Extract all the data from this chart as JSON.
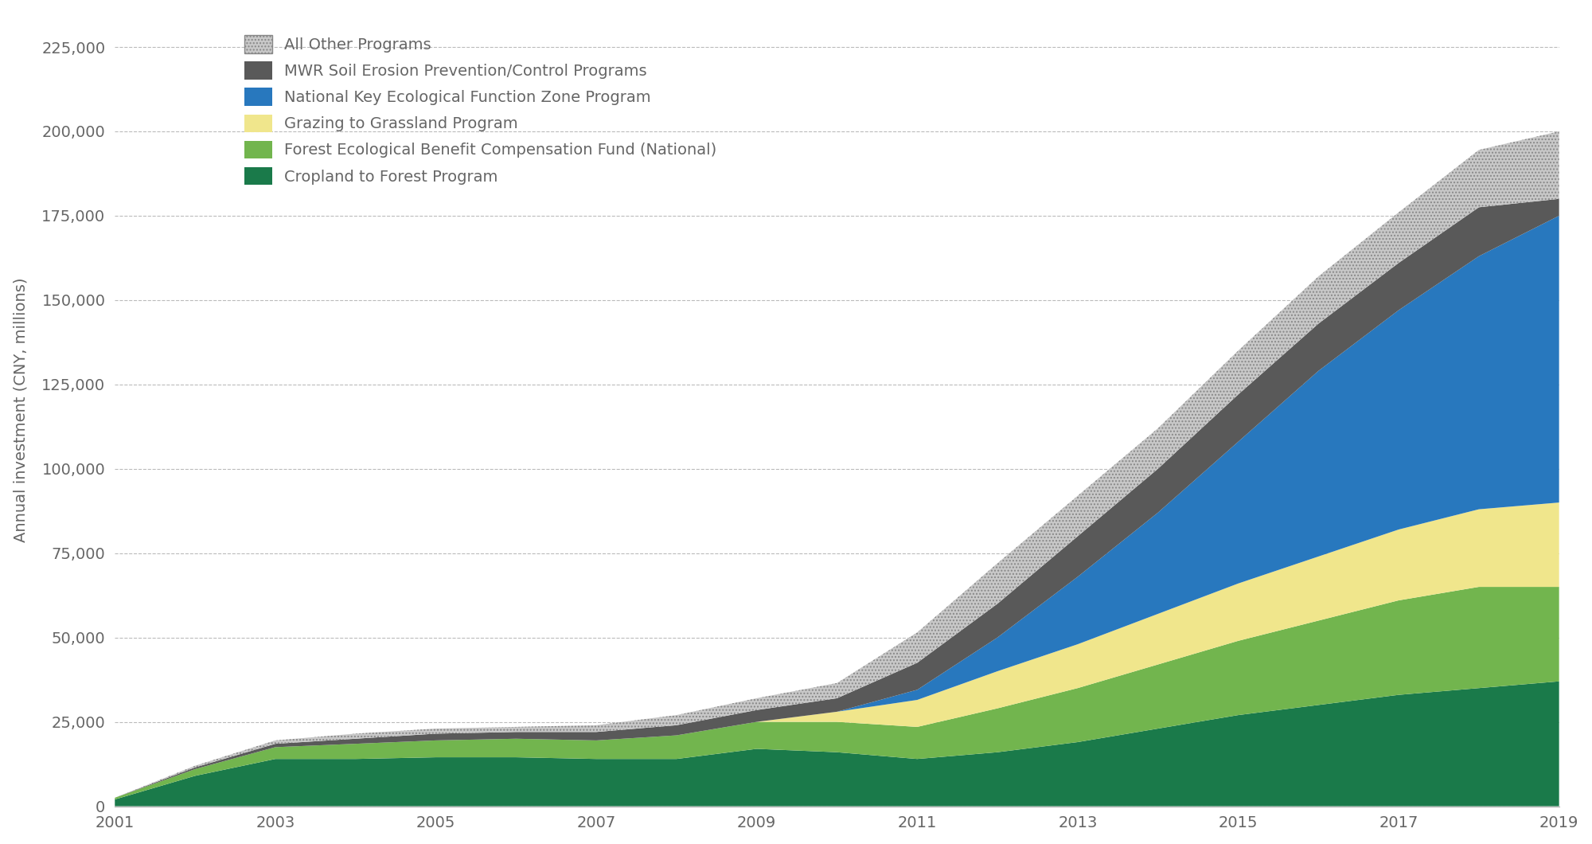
{
  "years": [
    2001,
    2002,
    2003,
    2004,
    2005,
    2006,
    2007,
    2008,
    2009,
    2010,
    2011,
    2012,
    2013,
    2014,
    2015,
    2016,
    2017,
    2018,
    2019
  ],
  "cropland_to_forest": [
    2000,
    9000,
    14000,
    14000,
    14500,
    14500,
    14000,
    14000,
    17000,
    16000,
    14000,
    16000,
    19000,
    23000,
    27000,
    30000,
    33000,
    35000,
    37000
  ],
  "forest_eco_fund": [
    500,
    2000,
    3500,
    4500,
    5000,
    5500,
    5500,
    7000,
    8000,
    9000,
    9500,
    13000,
    16000,
    19000,
    22000,
    25000,
    28000,
    30000,
    28000
  ],
  "grazing_to_grassland": [
    0,
    0,
    0,
    0,
    0,
    0,
    0,
    0,
    0,
    3000,
    8000,
    11000,
    13000,
    15000,
    17000,
    19000,
    21000,
    23000,
    25000
  ],
  "nat_key_eco_zone": [
    0,
    0,
    0,
    0,
    0,
    0,
    0,
    0,
    0,
    0,
    3000,
    10000,
    20000,
    30000,
    42000,
    55000,
    65000,
    75000,
    85000
  ],
  "mwr_soil_erosion": [
    0,
    500,
    1000,
    1500,
    2000,
    2000,
    2500,
    3000,
    3500,
    4000,
    8000,
    10000,
    12000,
    13000,
    14000,
    14000,
    14000,
    14500,
    5000
  ],
  "all_other": [
    0,
    500,
    1000,
    1500,
    1500,
    1500,
    2000,
    3000,
    3500,
    4500,
    9000,
    12000,
    12000,
    12000,
    13000,
    14000,
    15000,
    17000,
    20000
  ],
  "colors": {
    "cropland_to_forest": "#1a7a4a",
    "forest_eco_fund": "#72b54e",
    "grazing_to_grassland": "#f0e68c",
    "nat_key_eco_zone": "#2878be",
    "mwr_soil_erosion": "#595959",
    "all_other": "#c8c8c8"
  },
  "hatch_color": "#888888",
  "labels": {
    "cropland_to_forest": "Cropland to Forest Program",
    "forest_eco_fund": "Forest Ecological Benefit Compensation Fund (National)",
    "grazing_to_grassland": "Grazing to Grassland Program",
    "nat_key_eco_zone": "National Key Ecological Function Zone Program",
    "mwr_soil_erosion": "MWR Soil Erosion Prevention/Control Programs",
    "all_other": "All Other Programs"
  },
  "ylabel": "Annual investment (CNY, millions)",
  "ylim": [
    0,
    235000
  ],
  "yticks": [
    0,
    25000,
    50000,
    75000,
    100000,
    125000,
    150000,
    175000,
    200000,
    225000
  ],
  "xticks": [
    2001,
    2003,
    2005,
    2007,
    2009,
    2011,
    2013,
    2015,
    2017,
    2019
  ],
  "background_color": "#ffffff",
  "grid_color": "#bbbbbb",
  "tick_color": "#666666",
  "figsize": [
    20.0,
    10.6
  ],
  "dpi": 100
}
